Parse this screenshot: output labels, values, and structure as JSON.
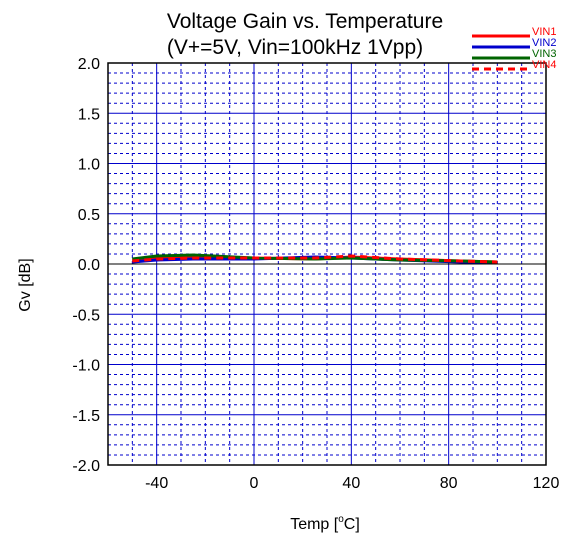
{
  "chart_data": {
    "type": "line",
    "title": "Voltage Gain vs. Temperature",
    "subtitle": "(V+=5V, Vin=100kHz 1Vpp)",
    "xlabel_main": "Temp [",
    "xlabel_sup": "o",
    "xlabel_end": "C]",
    "ylabel": "Gv [dB]",
    "xlim": [
      -60,
      120
    ],
    "ylim": [
      -2.0,
      2.0
    ],
    "x_major_ticks": [
      -40,
      0,
      40,
      80,
      120
    ],
    "x_tick_labels": [
      "-40",
      "0",
      "40",
      "80",
      "120"
    ],
    "y_major_ticks": [
      -2.0,
      -1.5,
      -1.0,
      -0.5,
      0.0,
      0.5,
      1.0,
      1.5,
      2.0
    ],
    "y_tick_labels": [
      "-2.0",
      "-1.5",
      "-1.0",
      "-0.5",
      "0.0",
      "0.5",
      "1.0",
      "1.5",
      "2.0"
    ],
    "x_minor_step": 10,
    "y_minor_step": 0.1,
    "grid": true,
    "legend_position": "top-right",
    "series": [
      {
        "name": "VIN1",
        "color": "#ff0000",
        "dash": "solid",
        "x": [
          -50,
          -40,
          -25,
          0,
          25,
          40,
          60,
          85,
          100
        ],
        "y": [
          0.04,
          0.06,
          0.07,
          0.06,
          0.05,
          0.07,
          0.05,
          0.03,
          0.02
        ]
      },
      {
        "name": "VIN2",
        "color": "#0000cc",
        "dash": "solid",
        "x": [
          -50,
          -40,
          -25,
          0,
          25,
          40,
          60,
          85,
          100
        ],
        "y": [
          0.02,
          0.04,
          0.05,
          0.05,
          0.07,
          0.06,
          0.04,
          0.02,
          0.02
        ]
      },
      {
        "name": "VIN3",
        "color": "#006400",
        "dash": "solid",
        "x": [
          -50,
          -40,
          -25,
          0,
          25,
          40,
          60,
          85,
          100
        ],
        "y": [
          0.05,
          0.08,
          0.09,
          0.06,
          0.05,
          0.06,
          0.04,
          0.03,
          0.02
        ]
      },
      {
        "name": "VIN4",
        "color": "#ff0000",
        "dash": "dashed",
        "x": [
          -50,
          -40,
          -25,
          0,
          25,
          40,
          60,
          85,
          100
        ],
        "y": [
          0.03,
          0.05,
          0.06,
          0.06,
          0.06,
          0.08,
          0.05,
          0.03,
          0.02
        ]
      }
    ]
  }
}
